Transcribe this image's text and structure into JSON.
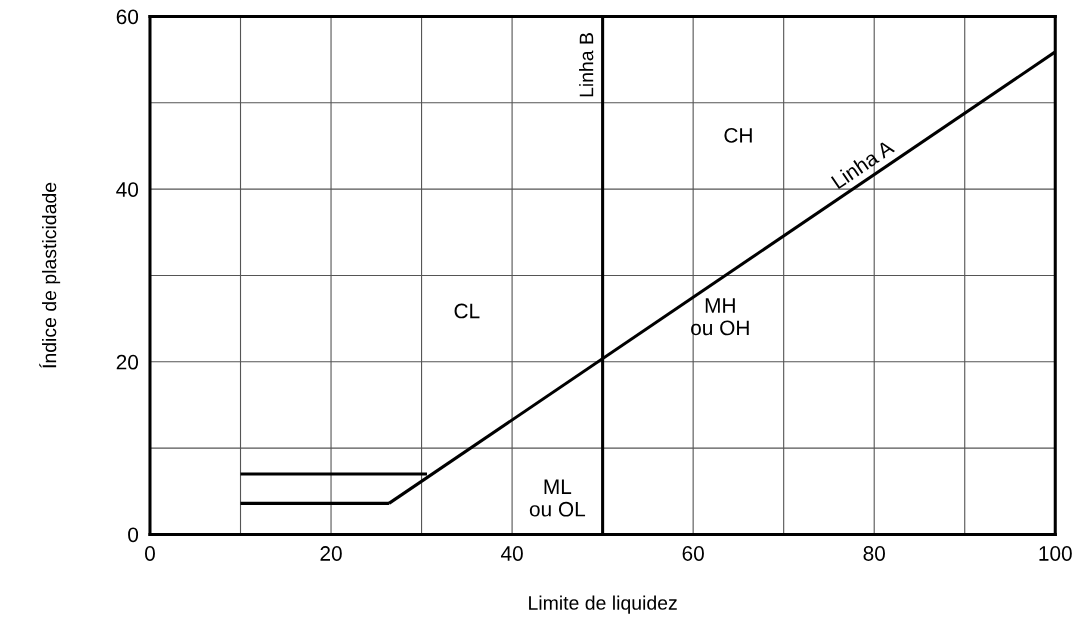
{
  "chart_data": {
    "type": "line",
    "xlabel": "Limite de liquidez",
    "ylabel": "Índice de plasticidade",
    "xlim": [
      0,
      100
    ],
    "ylim": [
      0,
      60
    ],
    "xticks": [
      0,
      {
        "value": 10,
        "label": null
      },
      20,
      {
        "value": 30,
        "label": null
      },
      40,
      {
        "value": 50,
        "label": null
      },
      60,
      {
        "value": 70,
        "label": null
      },
      80,
      {
        "value": 90,
        "label": null
      },
      100
    ],
    "yticks": [
      0,
      {
        "value": 10,
        "label": null
      },
      20,
      {
        "value": 30,
        "label": null
      },
      40,
      {
        "value": 50,
        "label": null
      },
      60
    ],
    "grid": true,
    "marker": "none",
    "line_style": "solid",
    "series": [
      {
        "name": "Linha A",
        "color": "#000000",
        "x": [
          26.4,
          100
        ],
        "values": [
          3.6,
          55.9
        ]
      },
      {
        "color": "#000000",
        "x": [
          10,
          26.4
        ],
        "values": [
          3.6,
          3.6
        ]
      },
      {
        "color": "#000000",
        "x": [
          10,
          30.6
        ],
        "values": [
          7.0,
          7.0
        ]
      }
    ],
    "ref_lines": [
      {
        "axis": "x",
        "value": 50,
        "label": "Linha B",
        "color": "#000000"
      }
    ],
    "annotations": [
      "CH",
      "CL",
      "MH\nou OH",
      "ML\nou OL"
    ]
  }
}
